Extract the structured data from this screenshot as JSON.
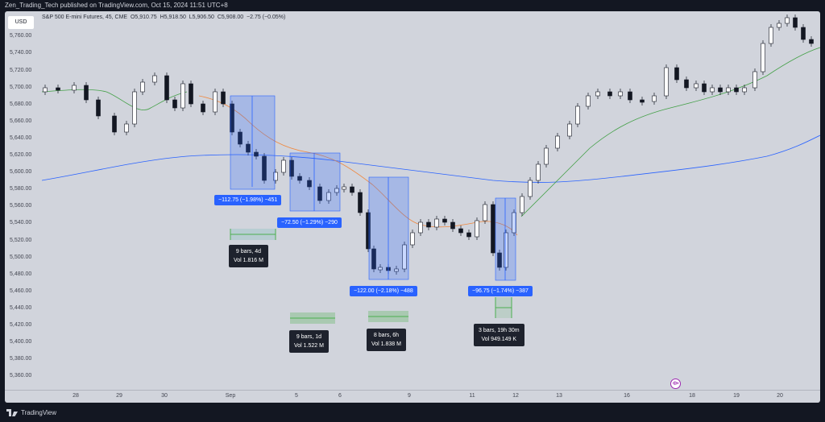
{
  "header": {
    "publisher": "Zen_Trading_Tech published on TradingView.com, Oct 15, 2024 11:51 UTC+8"
  },
  "legend": {
    "symbol": "S&P 500 E-mini Futures, 45, CME",
    "open": "O5,910.75",
    "high": "H5,918.50",
    "low": "L5,906.50",
    "close": "C5,908.00",
    "change": "−2.75 (−0.05%)"
  },
  "currency": "USD",
  "y_axis": [
    "5,760.00",
    "5,740.00",
    "5,720.00",
    "5,700.00",
    "5,680.00",
    "5,660.00",
    "5,640.00",
    "5,620.00",
    "5,600.00",
    "5,580.00",
    "5,560.00",
    "5,540.00",
    "5,520.00",
    "5,500.00",
    "5,480.00",
    "5,460.00",
    "5,440.00",
    "5,420.00",
    "5,400.00",
    "5,380.00",
    "5,360.00"
  ],
  "x_axis": [
    "28",
    "29",
    "30",
    "Sep",
    "5",
    "6",
    "9",
    "11",
    "12",
    "13",
    "16",
    "18",
    "19",
    "20"
  ],
  "measures": [
    {
      "label": "−112.75 (−1.98%) −451"
    },
    {
      "label": "−72.50 (−1.29%) −290"
    },
    {
      "label": "−122.00 (−2.18%) −488"
    },
    {
      "label": "−96.75 (−1.74%) −387"
    }
  ],
  "ranges": [
    {
      "line1": "9 bars, 4d",
      "line2": "Vol 1.816 M"
    },
    {
      "line1": "9 bars, 1d",
      "line2": "Vol 1.522 M"
    },
    {
      "line1": "8 bars, 6h",
      "line2": "Vol 1.838 M"
    },
    {
      "line1": "3 bars, 19h 30m",
      "line2": "Vol 949.149 K"
    }
  ],
  "footer": {
    "brand": "TradingView"
  },
  "colors": {
    "background": "#d1d4dc",
    "measure_fill": "#2962ff",
    "range_green": "#26a69a",
    "ema_fast": "#f0883e",
    "ema_slow": "#2962ff",
    "ema_green": "#43a047",
    "bull": "#ffffff",
    "bear": "#131722",
    "highlight": "#ef5350"
  },
  "icons": {
    "event": "event-marker-icon"
  }
}
